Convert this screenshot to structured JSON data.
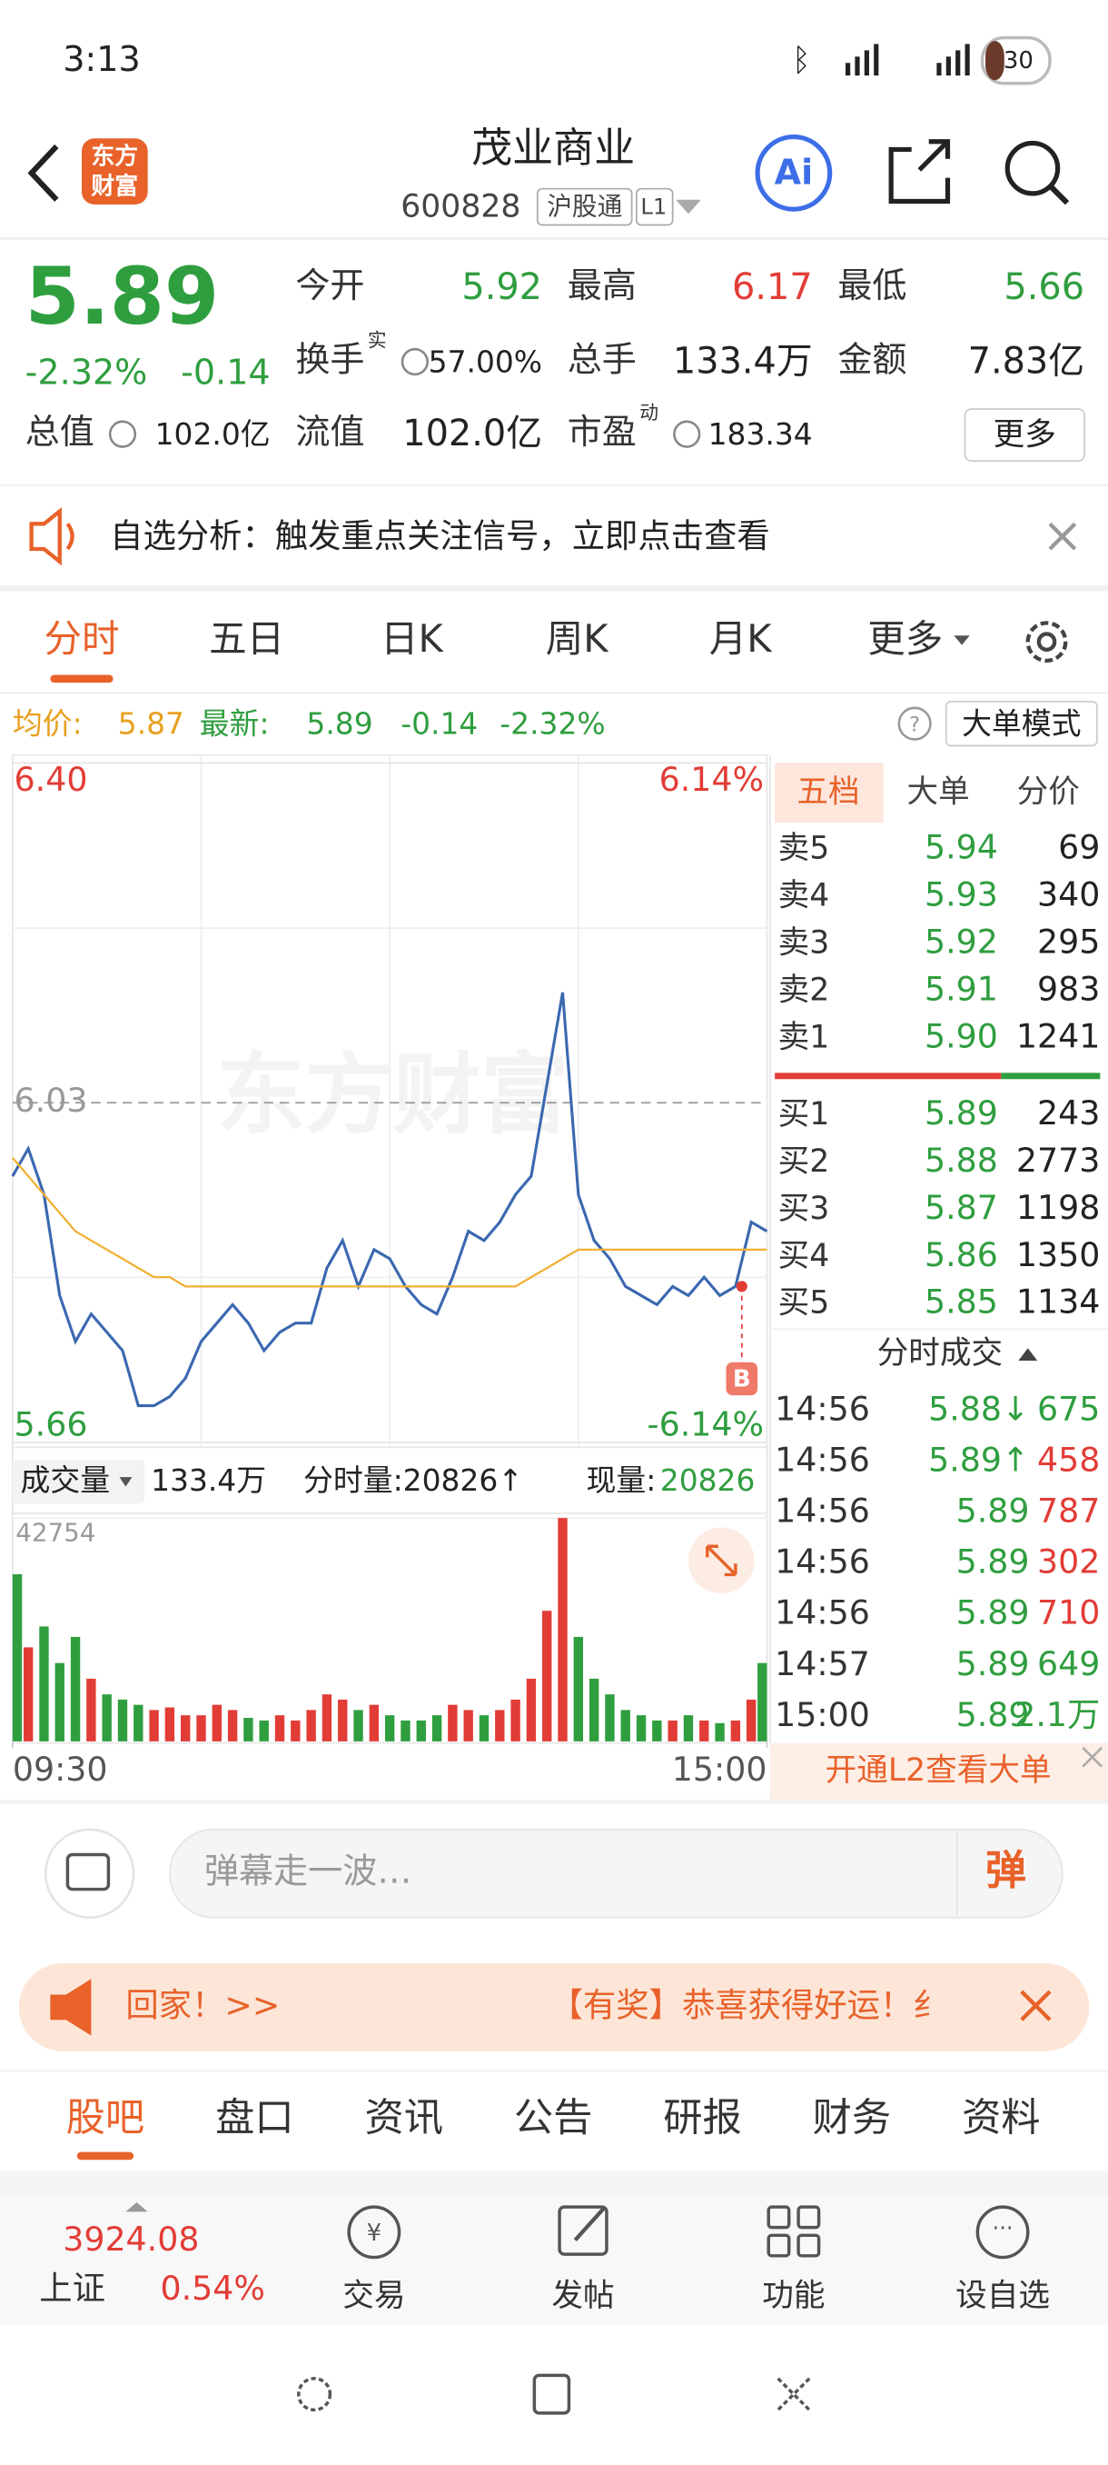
{
  "status_bar": {
    "time": "3:13",
    "battery": "30"
  },
  "header": {
    "logo_line1": "东方",
    "logo_line2": "财富",
    "title": "茂业商业",
    "code": "600828",
    "market_tag": "沪股通",
    "level": "L1"
  },
  "quote": {
    "price": "5.89",
    "change_pct": "-2.32%",
    "change": "-0.14",
    "fields": [
      {
        "label": "今开",
        "value": "5.92"
      },
      {
        "label": "最高",
        "value": "6.17"
      },
      {
        "label": "最低",
        "value": "5.66"
      },
      {
        "label": "换手",
        "sup": "实",
        "value": "57.00%"
      },
      {
        "label": "总手",
        "value": "133.4万"
      },
      {
        "label": "金额",
        "value": "7.83亿"
      },
      {
        "label": "总值",
        "value": "102.0亿"
      },
      {
        "label": "流值",
        "value": "102.0亿"
      },
      {
        "label": "市盈",
        "sup": "动",
        "value": "183.34"
      }
    ],
    "more": "更多"
  },
  "notice": {
    "text": "自选分析：触发重点关注信号，立即点击查看"
  },
  "tabs": {
    "items": [
      "分时",
      "五日",
      "日K",
      "周K",
      "月K",
      "更多"
    ],
    "active": 0
  },
  "info_line": {
    "avg_label": "均价:",
    "avg": "5.87",
    "latest_label": "最新:",
    "latest": "5.89",
    "change": "-0.14",
    "change_pct": "-2.32%",
    "mode": "大单模式"
  },
  "watermark": "东方财富",
  "chart_data": [
    {
      "type": "line",
      "ylim": [
        5.66,
        6.4
      ],
      "yticks": [
        {
          "value": 6.4,
          "label": "6.40"
        },
        6.03,
        5.66
      ],
      "y2lim": [
        -6.14,
        6.14
      ],
      "y2ticks": [
        {
          "value": 6.14,
          "label": "6.14%"
        },
        {
          "value": -6.14,
          "label": "-6.14%"
        }
      ],
      "xlim": [
        0,
        240
      ],
      "x": [
        0,
        5,
        10,
        15,
        20,
        25,
        30,
        35,
        40,
        45,
        50,
        55,
        60,
        65,
        70,
        75,
        80,
        85,
        90,
        95,
        100,
        105,
        110,
        115,
        120,
        125,
        130,
        135,
        140,
        145,
        150,
        155,
        160,
        165,
        170,
        175,
        180,
        185,
        190,
        195,
        200,
        205,
        210,
        215,
        220,
        225,
        230,
        235,
        240
      ],
      "series": [
        {
          "color": "#3b68b0",
          "values": [
            5.95,
            5.98,
            5.93,
            5.82,
            5.77,
            5.8,
            5.78,
            5.76,
            5.7,
            5.7,
            5.71,
            5.73,
            5.77,
            5.79,
            5.81,
            5.79,
            5.76,
            5.78,
            5.79,
            5.79,
            5.85,
            5.88,
            5.83,
            5.87,
            5.86,
            5.83,
            5.81,
            5.8,
            5.84,
            5.89,
            5.88,
            5.9,
            5.93,
            5.95,
            6.05,
            6.15,
            5.93,
            5.88,
            5.86,
            5.83,
            5.82,
            5.81,
            5.83,
            5.82,
            5.84,
            5.82,
            5.83,
            5.9,
            5.89
          ]
        },
        {
          "color": "#f0b035",
          "values": [
            5.97,
            5.95,
            5.93,
            5.91,
            5.89,
            5.88,
            5.87,
            5.86,
            5.85,
            5.84,
            5.84,
            5.83,
            5.83,
            5.83,
            5.83,
            5.83,
            5.83,
            5.83,
            5.83,
            5.83,
            5.83,
            5.83,
            5.83,
            5.83,
            5.83,
            5.83,
            5.83,
            5.83,
            5.83,
            5.83,
            5.83,
            5.83,
            5.83,
            5.84,
            5.85,
            5.86,
            5.87,
            5.87,
            5.87,
            5.87,
            5.87,
            5.87,
            5.87,
            5.87,
            5.87,
            5.87,
            5.87,
            5.87,
            5.87
          ]
        }
      ],
      "annotations": [
        {
          "text": "B",
          "x": 232,
          "y": 5.83
        }
      ]
    },
    {
      "type": "bar",
      "ylim": [
        0,
        42754
      ],
      "yticks": [
        42754
      ],
      "xlim": [
        0,
        240
      ],
      "xticks": [
        {
          "value": 0,
          "label": "09:30"
        },
        {
          "value": 240,
          "label": "15:00"
        }
      ],
      "x": [
        0,
        5,
        10,
        15,
        20,
        25,
        30,
        35,
        40,
        45,
        50,
        55,
        60,
        65,
        70,
        75,
        80,
        85,
        90,
        95,
        100,
        105,
        110,
        115,
        120,
        125,
        130,
        135,
        140,
        145,
        150,
        155,
        160,
        165,
        170,
        175,
        180,
        185,
        190,
        195,
        200,
        205,
        210,
        215,
        220,
        225,
        230,
        235,
        240
      ],
      "values": [
        32000,
        18000,
        22000,
        15000,
        20000,
        12000,
        9000,
        8000,
        7000,
        6000,
        6500,
        5000,
        5000,
        7000,
        6000,
        4500,
        4000,
        5000,
        4000,
        6000,
        9000,
        8000,
        6000,
        7000,
        5000,
        4000,
        4000,
        5000,
        7000,
        6000,
        5000,
        6000,
        8000,
        12000,
        25000,
        42754,
        20000,
        12000,
        9000,
        6000,
        5000,
        4000,
        4000,
        5000,
        4000,
        3500,
        4000,
        8000,
        15000
      ],
      "colors": [
        "#2f9e3f",
        "#e23c36",
        "#2f9e3f",
        "#2f9e3f",
        "#2f9e3f",
        "#e23c36",
        "#2f9e3f",
        "#2f9e3f",
        "#2f9e3f",
        "#e23c36",
        "#e23c36",
        "#e23c36",
        "#e23c36",
        "#e23c36",
        "#e23c36",
        "#2f9e3f",
        "#2f9e3f",
        "#e23c36",
        "#e23c36",
        "#e23c36",
        "#e23c36",
        "#e23c36",
        "#2f9e3f",
        "#e23c36",
        "#2f9e3f",
        "#2f9e3f",
        "#2f9e3f",
        "#2f9e3f",
        "#e23c36",
        "#e23c36",
        "#2f9e3f",
        "#e23c36",
        "#e23c36",
        "#e23c36",
        "#e23c36",
        "#e23c36",
        "#2f9e3f",
        "#2f9e3f",
        "#2f9e3f",
        "#2f9e3f",
        "#2f9e3f",
        "#2f9e3f",
        "#e23c36",
        "#2f9e3f",
        "#e23c36",
        "#2f9e3f",
        "#e23c36",
        "#e23c36",
        "#2f9e3f"
      ]
    }
  ],
  "volume_bar": {
    "label": "成交量",
    "total": "133.4万",
    "period_volume": "分时量:20826↑",
    "current_label": "现量:",
    "current": "20826"
  },
  "order_book": {
    "tabs": [
      "五档",
      "大单",
      "分价"
    ],
    "active": 0,
    "asks": [
      {
        "label": "卖5",
        "price": "5.94",
        "volume": "69"
      },
      {
        "label": "卖4",
        "price": "5.93",
        "volume": "340"
      },
      {
        "label": "卖3",
        "price": "5.92",
        "volume": "295"
      },
      {
        "label": "卖2",
        "price": "5.91",
        "volume": "983"
      },
      {
        "label": "卖1",
        "price": "5.90",
        "volume": "1241"
      }
    ],
    "bids": [
      {
        "label": "买1",
        "price": "5.89",
        "volume": "243"
      },
      {
        "label": "买2",
        "price": "5.88",
        "volume": "2773"
      },
      {
        "label": "买3",
        "price": "5.87",
        "volume": "1198"
      },
      {
        "label": "买4",
        "price": "5.86",
        "volume": "1350"
      },
      {
        "label": "买5",
        "price": "5.85",
        "volume": "1134"
      }
    ],
    "trades_title": "分时成交",
    "trades": [
      {
        "time": "14:56",
        "price": "5.88↓",
        "volume": "675",
        "color": "#2f9e3f"
      },
      {
        "time": "14:56",
        "price": "5.89↑",
        "volume": "458",
        "color": "#e23c36"
      },
      {
        "time": "14:56",
        "price": "5.89",
        "volume": "787",
        "color": "#e23c36"
      },
      {
        "time": "14:56",
        "price": "5.89",
        "volume": "302",
        "color": "#e23c36"
      },
      {
        "time": "14:56",
        "price": "5.89",
        "volume": "710",
        "color": "#e23c36"
      },
      {
        "time": "14:57",
        "price": "5.89",
        "volume": "649",
        "color": "#2f9e3f"
      },
      {
        "time": "15:00",
        "price": "5.89",
        "volume": "2.1万",
        "color": "#2f9e3f"
      }
    ],
    "l2_prompt": "开通L2查看大单"
  },
  "comment": {
    "placeholder": "弹幕走一波…",
    "button": "弹"
  },
  "promo": {
    "left": "回家！>>",
    "right": "【有奖】恭喜获得好运！纟"
  },
  "sections": {
    "items": [
      "股吧",
      "盘口",
      "资讯",
      "公告",
      "研报",
      "财务",
      "资料"
    ],
    "active": 0
  },
  "bottom_nav": {
    "index_value": "3924.08",
    "index_name": "上证",
    "index_pct": "0.54%",
    "items": [
      "交易",
      "发帖",
      "功能",
      "设自选"
    ]
  }
}
